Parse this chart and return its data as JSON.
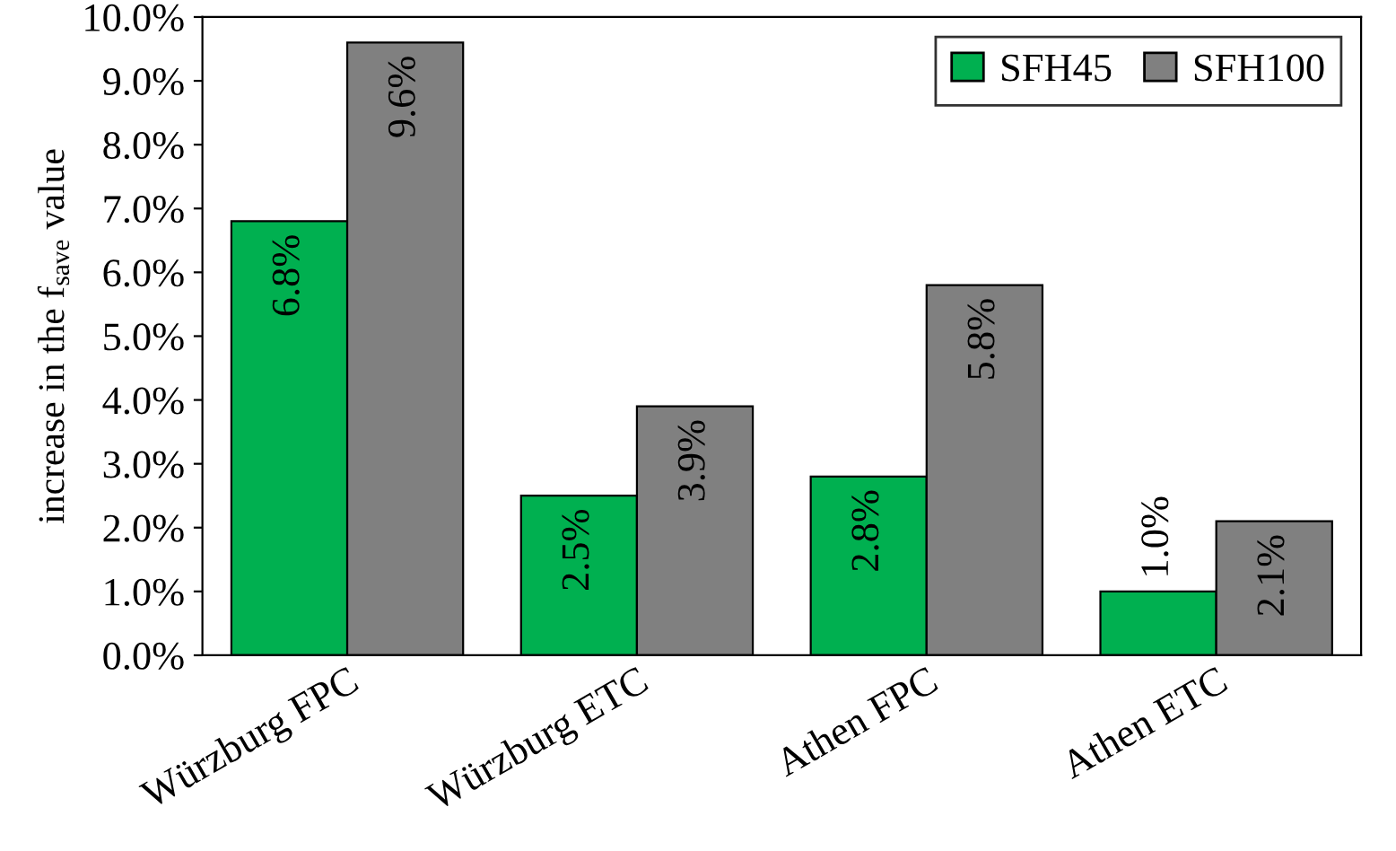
{
  "chart_data": {
    "type": "bar",
    "ylabel": "increase in the f$_{save}$ value",
    "categories": [
      "Würzburg FPC",
      "Würzburg ETC",
      "Athen FPC",
      "Athen ETC"
    ],
    "series": [
      {
        "name": "SFH45",
        "color": "#00b050",
        "values": [
          6.8,
          2.5,
          2.8,
          1.0
        ],
        "value_labels": [
          "6.8%",
          "2.5%",
          "2.8%",
          "1.0%"
        ]
      },
      {
        "name": "SFH100",
        "color": "#808080",
        "values": [
          9.6,
          3.9,
          5.8,
          2.1
        ],
        "value_labels": [
          "9.6%",
          "3.9%",
          "5.8%",
          "2.1%"
        ]
      }
    ],
    "ylim": [
      0,
      10
    ],
    "yticks": [
      {
        "value": 0,
        "label": "0.0%"
      },
      {
        "value": 1,
        "label": "1.0%"
      },
      {
        "value": 2,
        "label": "2.0%"
      },
      {
        "value": 3,
        "label": "3.0%"
      },
      {
        "value": 4,
        "label": "4.0%"
      },
      {
        "value": 5,
        "label": "5.0%"
      },
      {
        "value": 6,
        "label": "6.0%"
      },
      {
        "value": 7,
        "label": "7.0%"
      },
      {
        "value": 8,
        "label": "8.0%"
      },
      {
        "value": 9,
        "label": "9.0%"
      },
      {
        "value": 10,
        "label": "10.0%"
      }
    ],
    "legend": "top right",
    "grid": false
  }
}
